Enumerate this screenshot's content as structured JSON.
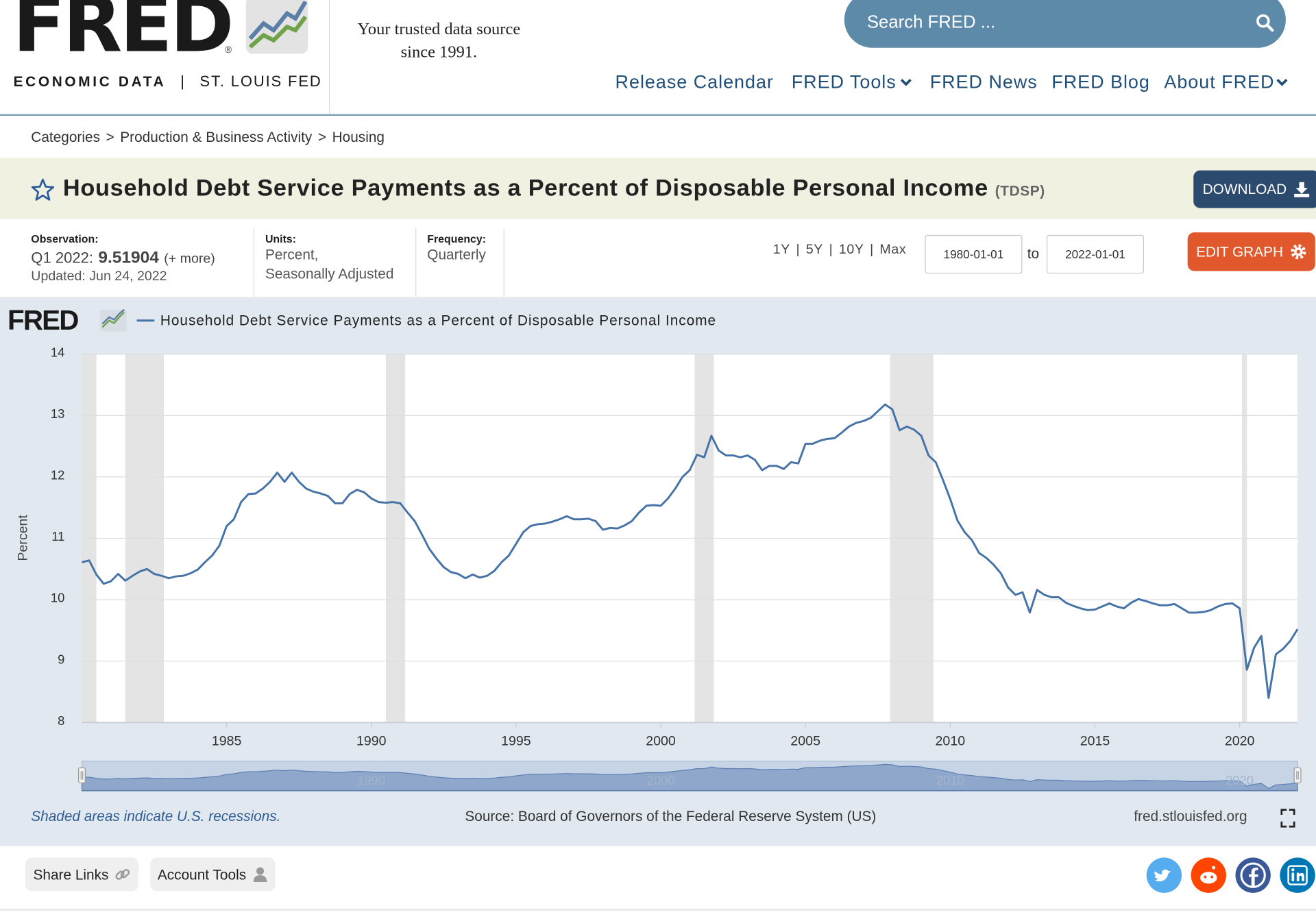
{
  "header": {
    "logo": "FRED",
    "registered": "®",
    "logo_sub_left": "ECONOMIC DATA",
    "logo_sub_separator": "|",
    "logo_sub_right": "ST. LOUIS FED",
    "tagline": [
      "Your trusted data source",
      "since 1991."
    ],
    "search_placeholder": "Search FRED ..."
  },
  "nav": [
    "Release Calendar",
    "FRED Tools",
    "FRED News",
    "FRED Blog",
    "About FRED"
  ],
  "breadcrumb": [
    "Categories",
    "Production & Business Activity",
    "Housing"
  ],
  "breadcrumb_separator": ">",
  "series_title": "Household Debt Service Payments as a Percent of Disposable Personal Income",
  "series_id": "(TDSP)",
  "download": "DOWNLOAD",
  "observation": {
    "label": "Observation:",
    "period": "Q1 2022:",
    "value": 9.51904,
    "more": "(+ more)",
    "updated": "Updated: Jun 24, 2022"
  },
  "units": {
    "label": "Units:",
    "value": [
      "Percent,",
      "Seasonally Adjusted"
    ]
  },
  "frequency": {
    "label": "Frequency:",
    "value": "Quarterly"
  },
  "ranges": [
    "1Y",
    "5Y",
    "10Y",
    "Max"
  ],
  "range_separator": "|",
  "date_from": "1980-01-01",
  "date_to_label": "to",
  "date_to": "2022-01-01",
  "edit_graph": "EDIT GRAPH",
  "chart_data": {
    "type": "line",
    "logo": "FRED",
    "y_label": "Percent",
    "x": [
      1980,
      1980.25,
      1980.5,
      1980.75,
      1981,
      1981.25,
      1981.5,
      1981.75,
      1982,
      1982.25,
      1982.5,
      1982.75,
      1983,
      1983.25,
      1983.5,
      1983.75,
      1984,
      1984.25,
      1984.5,
      1984.75,
      1985,
      1985.25,
      1985.5,
      1985.75,
      1986,
      1986.25,
      1986.5,
      1986.75,
      1987,
      1987.25,
      1987.5,
      1987.75,
      1988,
      1988.25,
      1988.5,
      1988.75,
      1989,
      1989.25,
      1989.5,
      1989.75,
      1990,
      1990.25,
      1990.5,
      1990.75,
      1991,
      1991.25,
      1991.5,
      1991.75,
      1992,
      1992.25,
      1992.5,
      1992.75,
      1993,
      1993.25,
      1993.5,
      1993.75,
      1994,
      1994.25,
      1994.5,
      1994.75,
      1995,
      1995.25,
      1995.5,
      1995.75,
      1996,
      1996.25,
      1996.5,
      1996.75,
      1997,
      1997.25,
      1997.5,
      1997.75,
      1998,
      1998.25,
      1998.5,
      1998.75,
      1999,
      1999.25,
      1999.5,
      1999.75,
      2000,
      2000.25,
      2000.5,
      2000.75,
      2001,
      2001.25,
      2001.5,
      2001.75,
      2002,
      2002.25,
      2002.5,
      2002.75,
      2003,
      2003.25,
      2003.5,
      2003.75,
      2004,
      2004.25,
      2004.5,
      2004.75,
      2005,
      2005.25,
      2005.5,
      2005.75,
      2006,
      2006.25,
      2006.5,
      2006.75,
      2007,
      2007.25,
      2007.5,
      2007.75,
      2008,
      2008.25,
      2008.5,
      2008.75,
      2009,
      2009.25,
      2009.5,
      2009.75,
      2010,
      2010.25,
      2010.5,
      2010.75,
      2011,
      2011.25,
      2011.5,
      2011.75,
      2012,
      2012.25,
      2012.5,
      2012.75,
      2013,
      2013.25,
      2013.5,
      2013.75,
      2014,
      2014.25,
      2014.5,
      2014.75,
      2015,
      2015.25,
      2015.5,
      2015.75,
      2016,
      2016.25,
      2016.5,
      2016.75,
      2017,
      2017.25,
      2017.5,
      2017.75,
      2018,
      2018.25,
      2018.5,
      2018.75,
      2019,
      2019.25,
      2019.5,
      2019.75,
      2020,
      2020.25,
      2020.5,
      2020.75,
      2021,
      2021.25,
      2021.5,
      2021.75,
      2022
    ],
    "series": [
      {
        "name": "Household Debt Service Payments as a Percent of Disposable Personal Income",
        "color": "#4572a7",
        "values": [
          10.61,
          10.64,
          10.41,
          10.26,
          10.3,
          10.42,
          10.31,
          10.39,
          10.46,
          10.5,
          10.42,
          10.39,
          10.35,
          10.38,
          10.39,
          10.43,
          10.49,
          10.61,
          10.72,
          10.88,
          11.2,
          11.31,
          11.59,
          11.72,
          11.73,
          11.81,
          11.92,
          12.07,
          11.92,
          12.07,
          11.92,
          11.81,
          11.76,
          11.73,
          11.69,
          11.57,
          11.57,
          11.72,
          11.79,
          11.75,
          11.65,
          11.59,
          11.58,
          11.59,
          11.57,
          11.42,
          11.28,
          11.06,
          10.83,
          10.67,
          10.53,
          10.45,
          10.42,
          10.35,
          10.41,
          10.36,
          10.39,
          10.47,
          10.61,
          10.72,
          10.91,
          11.1,
          11.2,
          11.23,
          11.24,
          11.27,
          11.31,
          11.36,
          11.31,
          11.31,
          11.32,
          11.28,
          11.14,
          11.17,
          11.16,
          11.21,
          11.28,
          11.42,
          11.53,
          11.54,
          11.53,
          11.65,
          11.81,
          12.0,
          12.11,
          12.36,
          12.32,
          12.67,
          12.43,
          12.35,
          12.35,
          12.32,
          12.35,
          12.28,
          12.11,
          12.18,
          12.18,
          12.13,
          12.24,
          12.22,
          12.54,
          12.54,
          12.59,
          12.62,
          12.63,
          12.72,
          12.82,
          12.88,
          12.91,
          12.96,
          13.07,
          13.18,
          13.1,
          12.76,
          12.82,
          12.77,
          12.67,
          12.35,
          12.24,
          11.95,
          11.64,
          11.29,
          11.1,
          10.97,
          10.76,
          10.68,
          10.57,
          10.43,
          10.2,
          10.08,
          10.12,
          9.79,
          10.16,
          10.08,
          10.04,
          10.04,
          9.95,
          9.9,
          9.86,
          9.83,
          9.84,
          9.89,
          9.94,
          9.89,
          9.86,
          9.95,
          10.01,
          9.98,
          9.94,
          9.91,
          9.91,
          9.93,
          9.86,
          9.79,
          9.79,
          9.8,
          9.83,
          9.89,
          9.93,
          9.94,
          9.86,
          8.86,
          9.22,
          9.41,
          8.4,
          9.11,
          9.2,
          9.33,
          9.52
        ]
      }
    ],
    "xlim": [
      1980,
      2022
    ],
    "ylim": [
      8,
      14
    ],
    "xticks": [
      1985,
      1990,
      1995,
      2000,
      2005,
      2010,
      2015,
      2020
    ],
    "yticks": [
      8,
      9,
      10,
      11,
      12,
      13,
      14
    ],
    "grid": true,
    "recessions": [
      [
        1980,
        1980.5
      ],
      [
        1981.5,
        1982.83
      ],
      [
        1990.5,
        1991.17
      ],
      [
        2001.17,
        2001.83
      ],
      [
        2007.92,
        2009.42
      ],
      [
        2020.08,
        2020.25
      ]
    ],
    "navigator_xticks": [
      1990,
      2000,
      2010,
      2020
    ]
  },
  "footer": {
    "note": "Shaded areas indicate U.S. recessions.",
    "source": "Source: Board of Governors of the Federal Reserve System (US)",
    "site": "fred.stlouisfed.org"
  },
  "share": [
    "Share Links",
    "Account Tools"
  ]
}
